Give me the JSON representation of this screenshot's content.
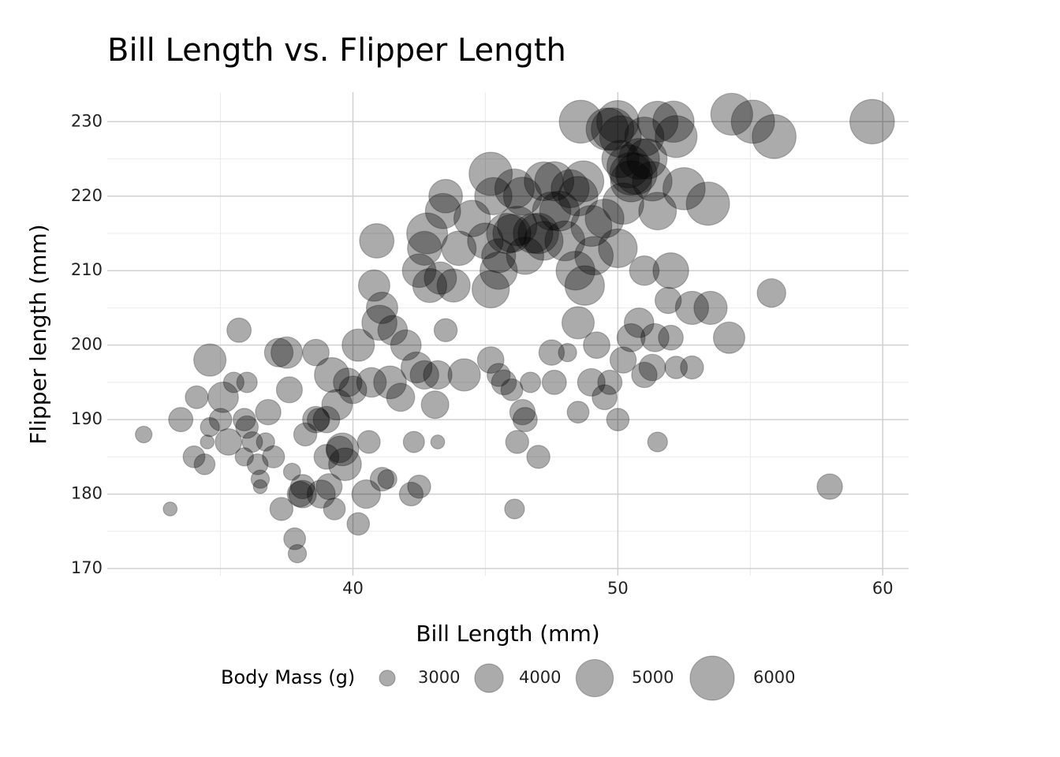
{
  "chart_data": {
    "type": "scatter",
    "title": "Bill Length vs. Flipper Length",
    "x_label": "Bill Length (mm)",
    "y_label": "Flipper length (mm)",
    "size_label": "Body Mass (g)",
    "color": "#000000",
    "grid": true,
    "xlim": [
      30.725,
      60.975
    ],
    "ylim": [
      169.05,
      233.95
    ],
    "xticks": [
      40,
      50,
      60
    ],
    "yticks": [
      170,
      180,
      190,
      200,
      210,
      220,
      230
    ],
    "x_minor_ticks": [
      35,
      45,
      55
    ],
    "y_minor_ticks": [
      175,
      185,
      195,
      205,
      215,
      225
    ],
    "size_ticks": [
      3000,
      4000,
      5000,
      6000
    ],
    "x": [
      32.1,
      33.1,
      33.5,
      34.0,
      34.1,
      34.4,
      34.6,
      34.6,
      34.5,
      35.0,
      35.1,
      35.3,
      35.5,
      35.7,
      35.9,
      35.9,
      36.0,
      36.2,
      36.4,
      36.5,
      36.5,
      36.7,
      37.0,
      37.2,
      37.5,
      37.6,
      37.3,
      37.7,
      37.8,
      37.9,
      38.0,
      38.1,
      38.1,
      38.6,
      38.6,
      38.7,
      38.8,
      39.0,
      39.1,
      39.2,
      39.3,
      39.5,
      39.6,
      39.7,
      39.8,
      40.2,
      40.2,
      40.5,
      40.6,
      40.8,
      40.9,
      41.0,
      41.1,
      41.3,
      41.5,
      41.1,
      41.4,
      42.0,
      42.2,
      42.3,
      42.5,
      42.7,
      43.2,
      43.2,
      43.5,
      43.1,
      44.2,
      36.0,
      36.8,
      38.2,
      39.0,
      39.4,
      40.0,
      40.7,
      41.8,
      42.4,
      45.2,
      45.5,
      45.7,
      46.0,
      46.1,
      46.2,
      46.4,
      46.5,
      46.7,
      47.0,
      47.5,
      47.6,
      48.1,
      48.5,
      48.5,
      49.0,
      49.2,
      49.5,
      49.7,
      50.0,
      50.2,
      50.5,
      50.8,
      51.0,
      51.3,
      51.4,
      51.5,
      51.9,
      52.0,
      52.2,
      52.8,
      53.5,
      52.8,
      54.2,
      55.8,
      58.0,
      52.0,
      51.0,
      45.2,
      45.2,
      45.0,
      45.5,
      45.5,
      45.8,
      46.0,
      46.2,
      46.5,
      46.8,
      47.0,
      47.2,
      47.5,
      47.6,
      48.0,
      48.2,
      48.4,
      48.5,
      48.7,
      49.0,
      49.1,
      48.75,
      43.5,
      43.4,
      43.8,
      43.3,
      44.0,
      42.8,
      42.7,
      42.5,
      42.9,
      44.5,
      45.3,
      46.1,
      46.4,
      47.2,
      47.8,
      48.6,
      49.6,
      50.0,
      50.1,
      49.8,
      50.4,
      50.5,
      50.8,
      51.0,
      51.1,
      51.5,
      51.5,
      51.3,
      52.1,
      52.2,
      52.5,
      53.4,
      54.3,
      55.1,
      55.9,
      59.6,
      50.0,
      49.5,
      50.2,
      50.5,
      50.7,
      50.1
    ],
    "y": [
      188,
      178,
      190,
      185,
      193,
      184,
      198,
      189,
      187,
      190,
      193,
      187,
      195,
      202,
      190,
      185,
      195,
      187,
      184,
      182,
      181,
      187,
      185,
      199,
      199,
      194,
      178,
      183,
      174,
      172,
      180,
      180,
      181,
      190,
      199,
      190,
      180,
      185,
      181,
      196,
      178,
      186,
      186,
      184,
      195,
      200,
      176,
      180,
      187,
      208,
      214,
      203,
      205,
      182,
      202,
      182,
      195,
      200,
      180,
      187,
      181,
      196,
      196,
      187,
      202,
      192,
      196,
      189,
      191,
      188,
      190,
      192,
      194,
      195,
      193,
      197,
      198,
      196,
      195,
      194,
      178,
      187,
      191,
      190,
      195,
      185,
      199,
      195,
      199,
      191,
      203,
      195,
      200,
      193,
      195,
      190,
      198,
      201,
      203,
      196,
      197,
      201,
      187,
      206,
      201,
      197,
      197,
      205,
      205,
      201,
      207,
      181,
      210,
      210,
      223,
      207.5,
      214,
      212,
      210,
      215,
      215,
      216,
      212,
      215,
      215,
      214,
      218,
      222,
      214,
      221,
      210,
      220,
      222,
      216,
      212,
      208,
      220,
      218,
      208,
      209,
      213,
      215,
      213,
      210,
      208,
      217,
      220,
      221,
      220,
      222,
      218,
      230,
      229,
      230,
      228,
      229,
      224,
      222,
      225,
      228,
      225,
      230,
      218,
      222,
      230,
      228,
      221,
      219,
      231,
      230,
      228,
      230,
      213,
      217,
      219,
      223,
      223,
      225
    ],
    "size": [
      3050,
      2900,
      3600,
      3400,
      3475,
      3325,
      4400,
      3200,
      2900,
      3450,
      4200,
      3800,
      3300,
      3600,
      3450,
      3150,
      3300,
      3300,
      3325,
      3150,
      2900,
      3150,
      3425,
      4000,
      4300,
      3750,
      3500,
      3075,
      3400,
      3150,
      3700,
      3900,
      3600,
      3800,
      3800,
      3450,
      3950,
      3650,
      3750,
      4675,
      3400,
      3800,
      4450,
      4450,
      4000,
      4400,
      3450,
      4000,
      3475,
      4300,
      4650,
      4725,
      4300,
      3200,
      4100,
      3550,
      4450,
      4200,
      3550,
      3350,
      3500,
      4000,
      4000,
      2900,
      3500,
      3900,
      4400,
      3450,
      3700,
      3500,
      3800,
      4200,
      3900,
      4100,
      3950,
      4250,
      3800,
      3500,
      3650,
      3400,
      3250,
      3500,
      3700,
      3600,
      3300,
      3500,
      3700,
      3600,
      3150,
      3400,
      4400,
      3900,
      3800,
      3650,
      3600,
      3450,
      3775,
      3950,
      4100,
      3700,
      3800,
      3950,
      3250,
      3775,
      3650,
      3450,
      3500,
      4500,
      4500,
      4300,
      4000,
      3700,
      4800,
      4100,
      5850,
      5000,
      4800,
      4600,
      5000,
      5400,
      5100,
      5300,
      5000,
      5300,
      5450,
      5200,
      5150,
      5250,
      5350,
      5100,
      5200,
      5300,
      5500,
      5500,
      5150,
      5300,
      4550,
      4750,
      4500,
      4400,
      4650,
      5500,
      4600,
      4550,
      4600,
      4900,
      5000,
      5300,
      5100,
      5200,
      5350,
      5800,
      5700,
      5700,
      5600,
      5750,
      5800,
      5550,
      5500,
      5250,
      5400,
      5500,
      5050,
      5300,
      5550,
      5650,
      5700,
      5850,
      5650,
      5850,
      5950,
      6050,
      5200,
      5200,
      5550,
      5750,
      5550,
      5000
    ]
  }
}
